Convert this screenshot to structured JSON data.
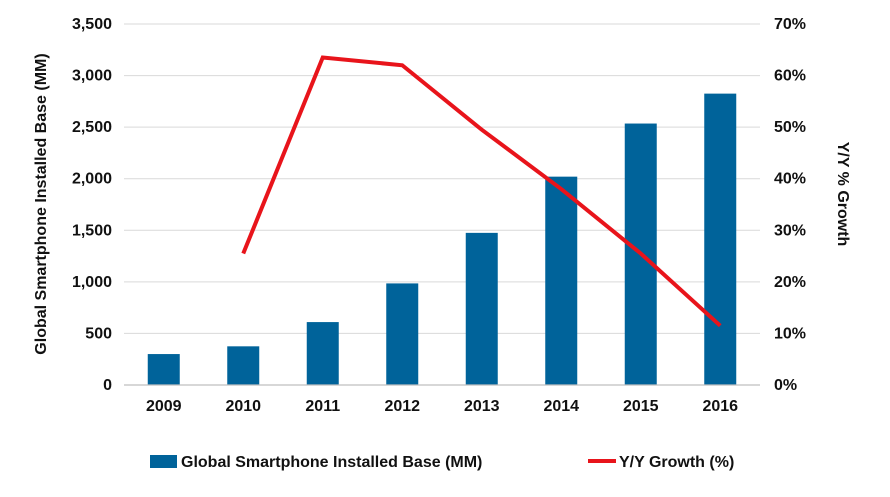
{
  "chart_data": {
    "type": "bar",
    "categories": [
      "2009",
      "2010",
      "2011",
      "2012",
      "2013",
      "2014",
      "2015",
      "2016"
    ],
    "series": [
      {
        "name": "Global Smartphone Installed Base (MM)",
        "type": "bar",
        "axis": "left",
        "color": "#00639a",
        "values": [
          300,
          375,
          610,
          985,
          1475,
          2020,
          2535,
          2825
        ]
      },
      {
        "name": "Y/Y Growth (%)",
        "type": "line",
        "axis": "right",
        "color": "#e8141b",
        "values": [
          null,
          25.5,
          63.5,
          62,
          49.5,
          38,
          25.5,
          11.5
        ]
      }
    ],
    "ylabel": "Global Smartphone Installed Base (MM)",
    "y2label": "Y/Y % Growth",
    "ylim": [
      0,
      3500
    ],
    "y2lim": [
      0,
      70
    ],
    "yticks": [
      "0",
      "500",
      "1,000",
      "1,500",
      "2,000",
      "2,500",
      "3,000",
      "3,500"
    ],
    "y2ticks": [
      "0%",
      "10%",
      "20%",
      "30%",
      "40%",
      "50%",
      "60%",
      "70%"
    ],
    "grid": true,
    "legend_position": "bottom"
  }
}
